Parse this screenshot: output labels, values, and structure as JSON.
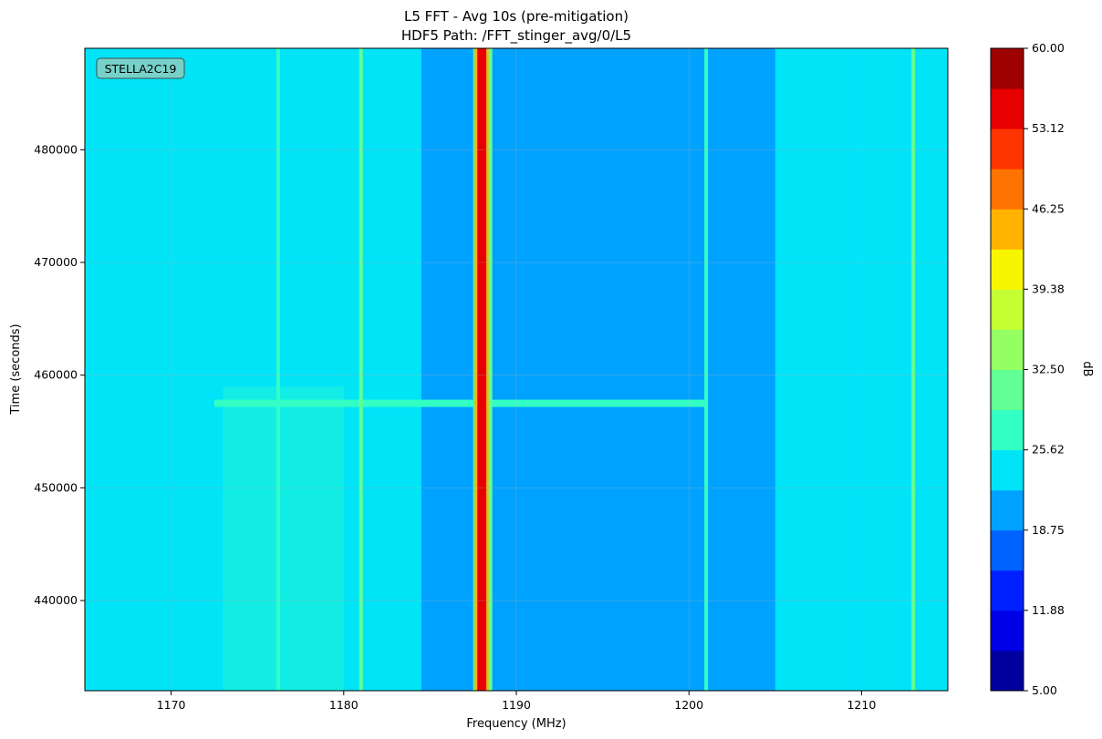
{
  "chart_data": {
    "type": "heatmap",
    "title": "L5 FFT - Avg 10s (pre-mitigation)",
    "subtitle": "HDF5 Path: /FFT_stinger_avg/0/L5",
    "xlabel": "Frequency (MHz)",
    "ylabel": "Time (seconds)",
    "annotation": "STELLA2C19",
    "xlim": [
      1165,
      1215
    ],
    "ylim": [
      432000,
      489000
    ],
    "x_ticks": [
      1170,
      1180,
      1190,
      1200,
      1210
    ],
    "y_ticks": [
      440000,
      450000,
      460000,
      470000,
      480000
    ],
    "grid": true,
    "colorbar": {
      "label": "dB",
      "vmin": 5.0,
      "vmax": 60.0,
      "levels": 16,
      "tick_labels": [
        "5.00",
        "11.88",
        "18.75",
        "25.62",
        "32.50",
        "39.38",
        "46.25",
        "53.12",
        "60.00"
      ],
      "colormap": [
        "#00009f",
        "#0000e6",
        "#0020ff",
        "#0062ff",
        "#00a2ff",
        "#00e4f8",
        "#33ffc4",
        "#62ff94",
        "#94ff62",
        "#c4ff33",
        "#f8f500",
        "#ffb300",
        "#ff7300",
        "#ff3500",
        "#e60000",
        "#9f0000"
      ]
    },
    "background_level_db": 24.5,
    "regions": [
      {
        "name": "broad band",
        "x_range": [
          1184.5,
          1201
        ],
        "level_db": 21
      },
      {
        "name": "scattered band",
        "x_range": [
          1201,
          1205
        ],
        "level_db": 22
      },
      {
        "name": "emission patch",
        "x_range": [
          1173,
          1180
        ],
        "level_db": 29
      }
    ],
    "lines": [
      {
        "x": 1176.2,
        "level_db": 27
      },
      {
        "x": 1181,
        "level_db": 30
      },
      {
        "x": 1187.6,
        "level_db": 27
      },
      {
        "x": 1188,
        "level_db": 56
      },
      {
        "x": 1188.5,
        "level_db": 30
      },
      {
        "x": 1201,
        "level_db": 27
      },
      {
        "x": 1213,
        "level_db": 30
      }
    ],
    "events": [
      {
        "time": 457500,
        "x_range": [
          1172.5,
          1201
        ],
        "level_db": 27
      }
    ]
  }
}
